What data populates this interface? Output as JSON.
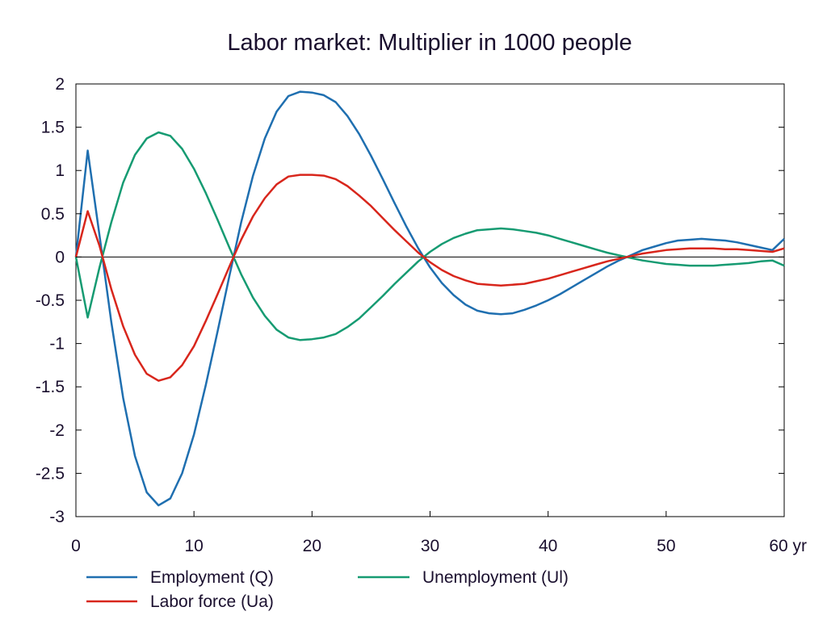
{
  "chart_data": {
    "type": "line",
    "title": "Labor market: Multiplier in 1000 people",
    "xlabel": "",
    "ylabel": "",
    "xlim": [
      0,
      60
    ],
    "ylim": [
      -3,
      2
    ],
    "x_ticks": [
      0,
      10,
      20,
      30,
      40,
      50,
      60
    ],
    "x_tick_labels": [
      "0",
      "10",
      "20",
      "30",
      "40",
      "50",
      "60 yr"
    ],
    "y_ticks": [
      2,
      1.5,
      1,
      0.5,
      0,
      -0.5,
      -1,
      -1.5,
      -2,
      -2.5,
      -3
    ],
    "y_tick_labels": [
      "2",
      "1.5",
      "1",
      "0.5",
      "0",
      "-0.5",
      "-1",
      "-1.5",
      "-2",
      "-2.5",
      "-3"
    ],
    "grid": false,
    "zero_line": true,
    "legend_position": "bottom",
    "series": [
      {
        "name": "Employment (Q)",
        "color": "#1f6fb0",
        "x": [
          0,
          1,
          2,
          3,
          4,
          5,
          6,
          7,
          8,
          9,
          10,
          11,
          12,
          13,
          14,
          15,
          16,
          17,
          18,
          19,
          20,
          21,
          22,
          23,
          24,
          25,
          26,
          27,
          28,
          29,
          30,
          31,
          32,
          33,
          34,
          35,
          36,
          37,
          38,
          39,
          40,
          41,
          42,
          43,
          44,
          45,
          46,
          47,
          48,
          49,
          50,
          51,
          52,
          53,
          54,
          55,
          56,
          57,
          58,
          59,
          60
        ],
        "values": [
          0,
          1.23,
          0.25,
          -0.75,
          -1.63,
          -2.3,
          -2.72,
          -2.87,
          -2.79,
          -2.5,
          -2.05,
          -1.48,
          -0.86,
          -0.22,
          0.4,
          0.94,
          1.37,
          1.68,
          1.86,
          1.91,
          1.9,
          1.87,
          1.79,
          1.63,
          1.42,
          1.17,
          0.9,
          0.62,
          0.35,
          0.1,
          -0.12,
          -0.3,
          -0.44,
          -0.55,
          -0.62,
          -0.65,
          -0.66,
          -0.65,
          -0.61,
          -0.56,
          -0.5,
          -0.43,
          -0.35,
          -0.27,
          -0.19,
          -0.11,
          -0.04,
          0.02,
          0.08,
          0.12,
          0.16,
          0.19,
          0.2,
          0.21,
          0.2,
          0.19,
          0.17,
          0.14,
          0.11,
          0.08,
          0.21
        ]
      },
      {
        "name": "Unemployment (Ul)",
        "color": "#169b72",
        "x": [
          0,
          1,
          2,
          3,
          4,
          5,
          6,
          7,
          8,
          9,
          10,
          11,
          12,
          13,
          14,
          15,
          16,
          17,
          18,
          19,
          20,
          21,
          22,
          23,
          24,
          25,
          26,
          27,
          28,
          29,
          30,
          31,
          32,
          33,
          34,
          35,
          36,
          37,
          38,
          39,
          40,
          41,
          42,
          43,
          44,
          45,
          46,
          47,
          48,
          49,
          50,
          51,
          52,
          53,
          54,
          55,
          56,
          57,
          58,
          59,
          60
        ],
        "values": [
          0,
          -0.7,
          -0.12,
          0.4,
          0.86,
          1.18,
          1.37,
          1.44,
          1.4,
          1.25,
          1.02,
          0.74,
          0.43,
          0.11,
          -0.2,
          -0.47,
          -0.68,
          -0.84,
          -0.93,
          -0.96,
          -0.95,
          -0.93,
          -0.89,
          -0.81,
          -0.71,
          -0.58,
          -0.45,
          -0.31,
          -0.18,
          -0.05,
          0.06,
          0.15,
          0.22,
          0.27,
          0.31,
          0.32,
          0.33,
          0.32,
          0.3,
          0.28,
          0.25,
          0.21,
          0.17,
          0.13,
          0.09,
          0.05,
          0.02,
          -0.01,
          -0.04,
          -0.06,
          -0.08,
          -0.09,
          -0.1,
          -0.1,
          -0.1,
          -0.09,
          -0.08,
          -0.07,
          -0.05,
          -0.04,
          -0.1
        ]
      },
      {
        "name": "Labor force (Ua)",
        "color": "#d8261c",
        "x": [
          0,
          1,
          2,
          3,
          4,
          5,
          6,
          7,
          8,
          9,
          10,
          11,
          12,
          13,
          14,
          15,
          16,
          17,
          18,
          19,
          20,
          21,
          22,
          23,
          24,
          25,
          26,
          27,
          28,
          29,
          30,
          31,
          32,
          33,
          34,
          35,
          36,
          37,
          38,
          39,
          40,
          41,
          42,
          43,
          44,
          45,
          46,
          47,
          48,
          49,
          50,
          51,
          52,
          53,
          54,
          55,
          56,
          57,
          58,
          59,
          60
        ],
        "values": [
          0,
          0.53,
          0.13,
          -0.37,
          -0.8,
          -1.13,
          -1.35,
          -1.43,
          -1.39,
          -1.25,
          -1.03,
          -0.74,
          -0.43,
          -0.11,
          0.2,
          0.47,
          0.68,
          0.84,
          0.93,
          0.95,
          0.95,
          0.94,
          0.9,
          0.82,
          0.71,
          0.59,
          0.45,
          0.31,
          0.18,
          0.05,
          -0.06,
          -0.15,
          -0.22,
          -0.27,
          -0.31,
          -0.32,
          -0.33,
          -0.32,
          -0.31,
          -0.28,
          -0.25,
          -0.21,
          -0.17,
          -0.13,
          -0.09,
          -0.05,
          -0.02,
          0.01,
          0.04,
          0.06,
          0.08,
          0.09,
          0.1,
          0.1,
          0.1,
          0.09,
          0.09,
          0.08,
          0.07,
          0.06,
          0.1
        ]
      }
    ]
  }
}
